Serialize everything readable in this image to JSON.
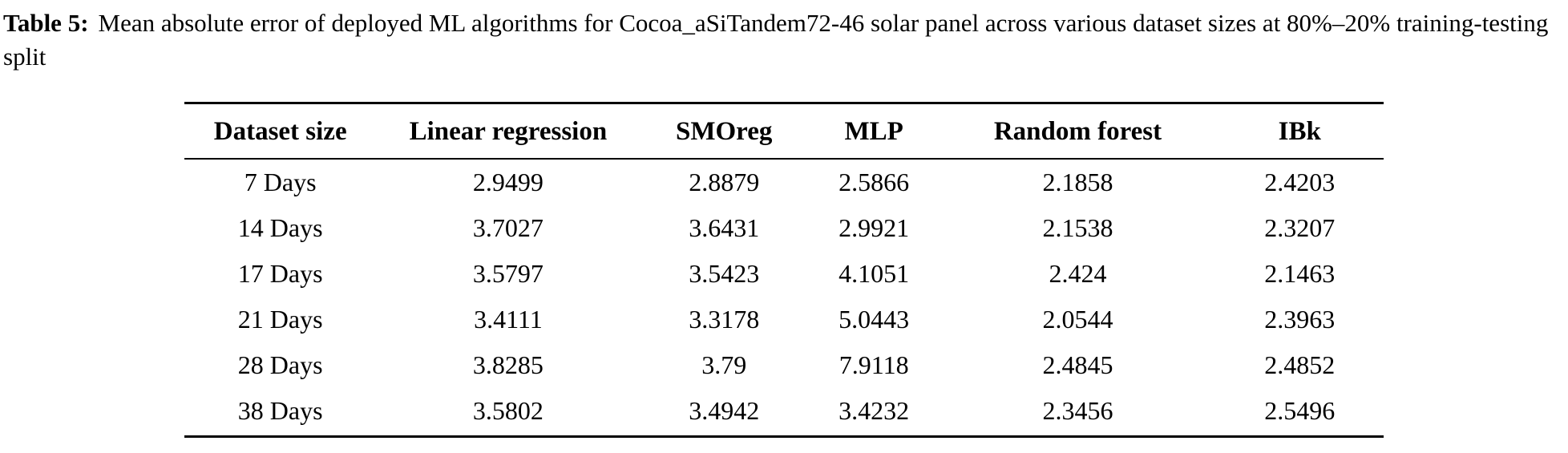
{
  "caption": {
    "label": "Table 5:",
    "text": "Mean absolute error of deployed ML algorithms for Cocoa_aSiTandem72-46 solar panel across various dataset sizes at 80%–20% training-testing split"
  },
  "table": {
    "headers": [
      "Dataset size",
      "Linear regression",
      "SMOreg",
      "MLP",
      "Random forest",
      "IBk"
    ],
    "rows": [
      [
        "7 Days",
        "2.9499",
        "2.8879",
        "2.5866",
        "2.1858",
        "2.4203"
      ],
      [
        "14 Days",
        "3.7027",
        "3.6431",
        "2.9921",
        "2.1538",
        "2.3207"
      ],
      [
        "17 Days",
        "3.5797",
        "3.5423",
        "4.1051",
        "2.424",
        "2.1463"
      ],
      [
        "21 Days",
        "3.4111",
        "3.3178",
        "5.0443",
        "2.0544",
        "2.3963"
      ],
      [
        "28 Days",
        "3.8285",
        "3.79",
        "7.9118",
        "2.4845",
        "2.4852"
      ],
      [
        "38 Days",
        "3.5802",
        "3.4942",
        "3.4232",
        "2.3456",
        "2.5496"
      ]
    ]
  },
  "chart_data": {
    "type": "table",
    "title": "Table 5: Mean absolute error of deployed ML algorithms for Cocoa_aSiTandem72-46 solar panel across various dataset sizes at 80%–20% training-testing split",
    "categories": [
      "7 Days",
      "14 Days",
      "17 Days",
      "21 Days",
      "28 Days",
      "38 Days"
    ],
    "series": [
      {
        "name": "Linear regression",
        "values": [
          2.9499,
          3.7027,
          3.5797,
          3.4111,
          3.8285,
          3.5802
        ]
      },
      {
        "name": "SMOreg",
        "values": [
          2.8879,
          3.6431,
          3.5423,
          3.3178,
          3.79,
          3.4942
        ]
      },
      {
        "name": "MLP",
        "values": [
          2.5866,
          2.9921,
          4.1051,
          5.0443,
          7.9118,
          3.4232
        ]
      },
      {
        "name": "Random forest",
        "values": [
          2.1858,
          2.1538,
          2.424,
          2.0544,
          2.4845,
          2.3456
        ]
      },
      {
        "name": "IBk",
        "values": [
          2.4203,
          2.3207,
          2.1463,
          2.3963,
          2.4852,
          2.5496
        ]
      }
    ]
  }
}
